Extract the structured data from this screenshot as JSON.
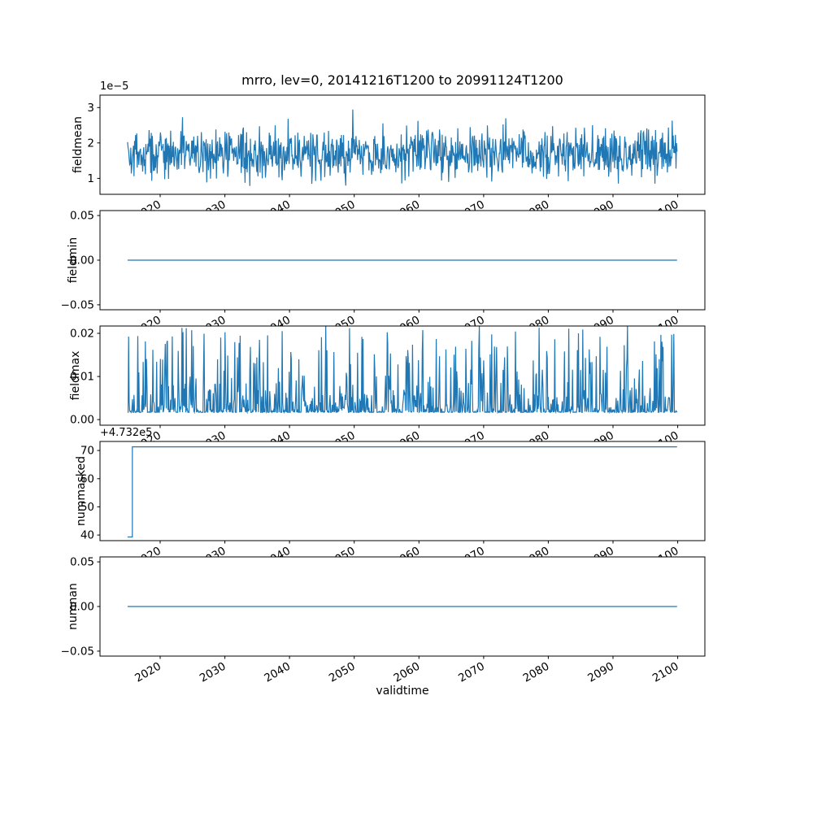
{
  "title": "mrro, lev=0, 20141216T1200 to 20991124T1200",
  "xlabel": "validtime",
  "colors": {
    "line": "#1f77b4",
    "frame": "#000000",
    "background": "#ffffff",
    "text": "#000000"
  },
  "xlim": [
    2010.7,
    2104.2
  ],
  "x_ticks": [
    {
      "v": 2020,
      "label": "2020"
    },
    {
      "v": 2030,
      "label": "2030"
    },
    {
      "v": 2040,
      "label": "2040"
    },
    {
      "v": 2050,
      "label": "2050"
    },
    {
      "v": 2060,
      "label": "2060"
    },
    {
      "v": 2070,
      "label": "2070"
    },
    {
      "v": 2080,
      "label": "2080"
    },
    {
      "v": 2090,
      "label": "2090"
    },
    {
      "v": 2100,
      "label": "2100"
    }
  ],
  "chart_data": [
    {
      "type": "line",
      "name": "fieldmean",
      "ylabel": "fieldmean",
      "offset_text": "1e−5",
      "value_scale": "1e-5",
      "ylim": [
        0.55,
        3.35
      ],
      "yticks": [
        {
          "v": 1,
          "label": "1"
        },
        {
          "v": 2,
          "label": "2"
        },
        {
          "v": 3,
          "label": "3"
        }
      ],
      "summary": {
        "min": 0.7,
        "max": 3.3,
        "mean": 1.7,
        "units": "×1e-5",
        "x_start": 2014.96,
        "x_end": 2099.9
      },
      "series": {
        "kind": "noise",
        "seed": 42,
        "n": 1021,
        "x_start": 2014.96,
        "x_end": 2099.9,
        "base": 1.68,
        "spread": 0.6,
        "clip": [
          0.72,
          3.28
        ],
        "spike_p": 0.02,
        "spike_amp": 0.8
      }
    },
    {
      "type": "line",
      "name": "fieldmin",
      "ylabel": "fieldmin",
      "ylim": [
        -0.0556,
        0.0556
      ],
      "yticks": [
        {
          "v": 0.05,
          "label": "0.05"
        },
        {
          "v": 0,
          "label": "0.00"
        },
        {
          "v": -0.05,
          "label": "−0.05"
        }
      ],
      "summary": {
        "constant_value": 0,
        "x_start": 2014.96,
        "x_end": 2099.9
      },
      "series": {
        "kind": "const",
        "value": 0,
        "x_start": 2014.96,
        "x_end": 2099.9
      }
    },
    {
      "type": "line",
      "name": "fieldmax",
      "ylabel": "fieldmax",
      "ylim": [
        -0.0013,
        0.0217
      ],
      "yticks": [
        {
          "v": 0,
          "label": "0.00"
        },
        {
          "v": 0.01,
          "label": "0.01"
        },
        {
          "v": 0.02,
          "label": "0.02"
        }
      ],
      "summary": {
        "min": 0.001,
        "max": 0.0218,
        "typical": 0.004,
        "x_start": 2014.96,
        "x_end": 2099.9
      },
      "series": {
        "kind": "noisepow",
        "seed": 7,
        "n": 1021,
        "x_start": 2014.96,
        "x_end": 2099.9,
        "lo": 0.0017,
        "range": 0.0202,
        "p": 6
      }
    },
    {
      "type": "line",
      "name": "nummasked",
      "ylabel": "nummasked",
      "offset_text": "+4.732e5",
      "offset_value": 473200,
      "ylim": [
        38,
        73.2
      ],
      "yticks": [
        {
          "v": 40,
          "label": "40"
        },
        {
          "v": 50,
          "label": "50"
        },
        {
          "v": 60,
          "label": "60"
        },
        {
          "v": 70,
          "label": "70"
        }
      ],
      "summary": {
        "start_value": 473239,
        "end_value": 473271,
        "step_year": 2015.7,
        "x_start": 2014.96,
        "x_end": 2099.9
      },
      "series": {
        "kind": "step",
        "x_start": 2014.96,
        "x_end": 2099.9,
        "before": 39.3,
        "after": 71.3,
        "step_x": 2015.7
      }
    },
    {
      "type": "line",
      "name": "numnan",
      "ylabel": "numnan",
      "ylim": [
        -0.0556,
        0.0556
      ],
      "yticks": [
        {
          "v": 0.05,
          "label": "0.05"
        },
        {
          "v": 0,
          "label": "0.00"
        },
        {
          "v": -0.05,
          "label": "−0.05"
        }
      ],
      "summary": {
        "constant_value": 0,
        "x_start": 2014.96,
        "x_end": 2099.9
      },
      "series": {
        "kind": "const",
        "value": 0,
        "x_start": 2014.96,
        "x_end": 2099.9
      }
    }
  ]
}
